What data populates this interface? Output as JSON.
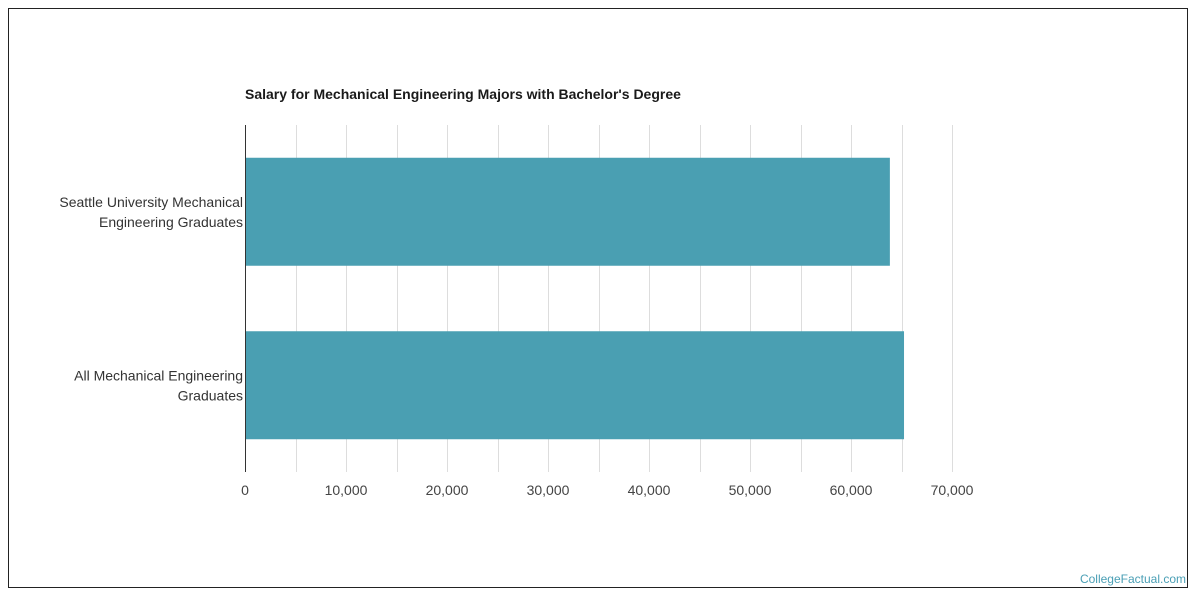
{
  "chart_data": {
    "type": "bar",
    "orientation": "horizontal",
    "title": "Salary for Mechanical Engineering Majors with Bachelor's Degree",
    "categories": [
      [
        "Seattle University Mechanical",
        "Engineering Graduates"
      ],
      [
        "All Mechanical Engineering",
        "Graduates"
      ]
    ],
    "values": [
      63800,
      65200
    ],
    "xlim": [
      0,
      70000
    ],
    "x_ticks": [
      0,
      10000,
      20000,
      30000,
      40000,
      50000,
      60000,
      70000
    ],
    "x_tick_labels": [
      "0",
      "10,000",
      "20,000",
      "30,000",
      "40,000",
      "50,000",
      "60,000",
      "70,000"
    ],
    "grid": true,
    "bar_color": "#4a9fb2",
    "grid_color": "#dddddd"
  },
  "watermark": "CollegeFactual.com"
}
